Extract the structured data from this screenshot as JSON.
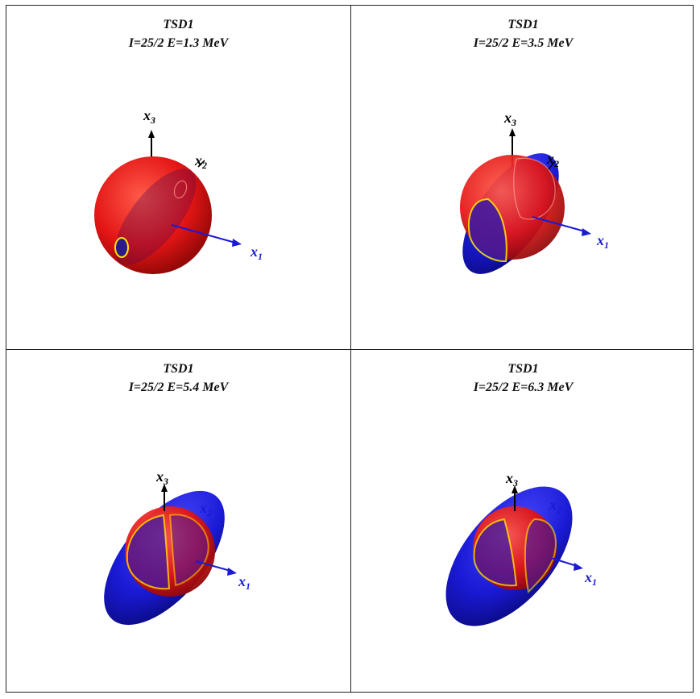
{
  "panels": [
    {
      "title": "TSD1",
      "subtitle": "I=25/2 E=1.3 MeV"
    },
    {
      "title": "TSD1",
      "subtitle": "I=25/2 E=3.5 MeV"
    },
    {
      "title": "TSD1",
      "subtitle": "I=25/2 E=5.4 MeV"
    },
    {
      "title": "TSD1",
      "subtitle": "I=25/2 E=6.3 MeV"
    }
  ],
  "axes": {
    "x1": "x",
    "x1_sub": "1",
    "x2": "x",
    "x2_sub": "2",
    "x3": "x",
    "x3_sub": "3"
  },
  "colors": {
    "sphere": "#e01010",
    "ellipsoid": "#1a1ad6",
    "intersection": "#ffe600",
    "x1_axis": "#1a1ad6",
    "other_axes": "#000000"
  }
}
